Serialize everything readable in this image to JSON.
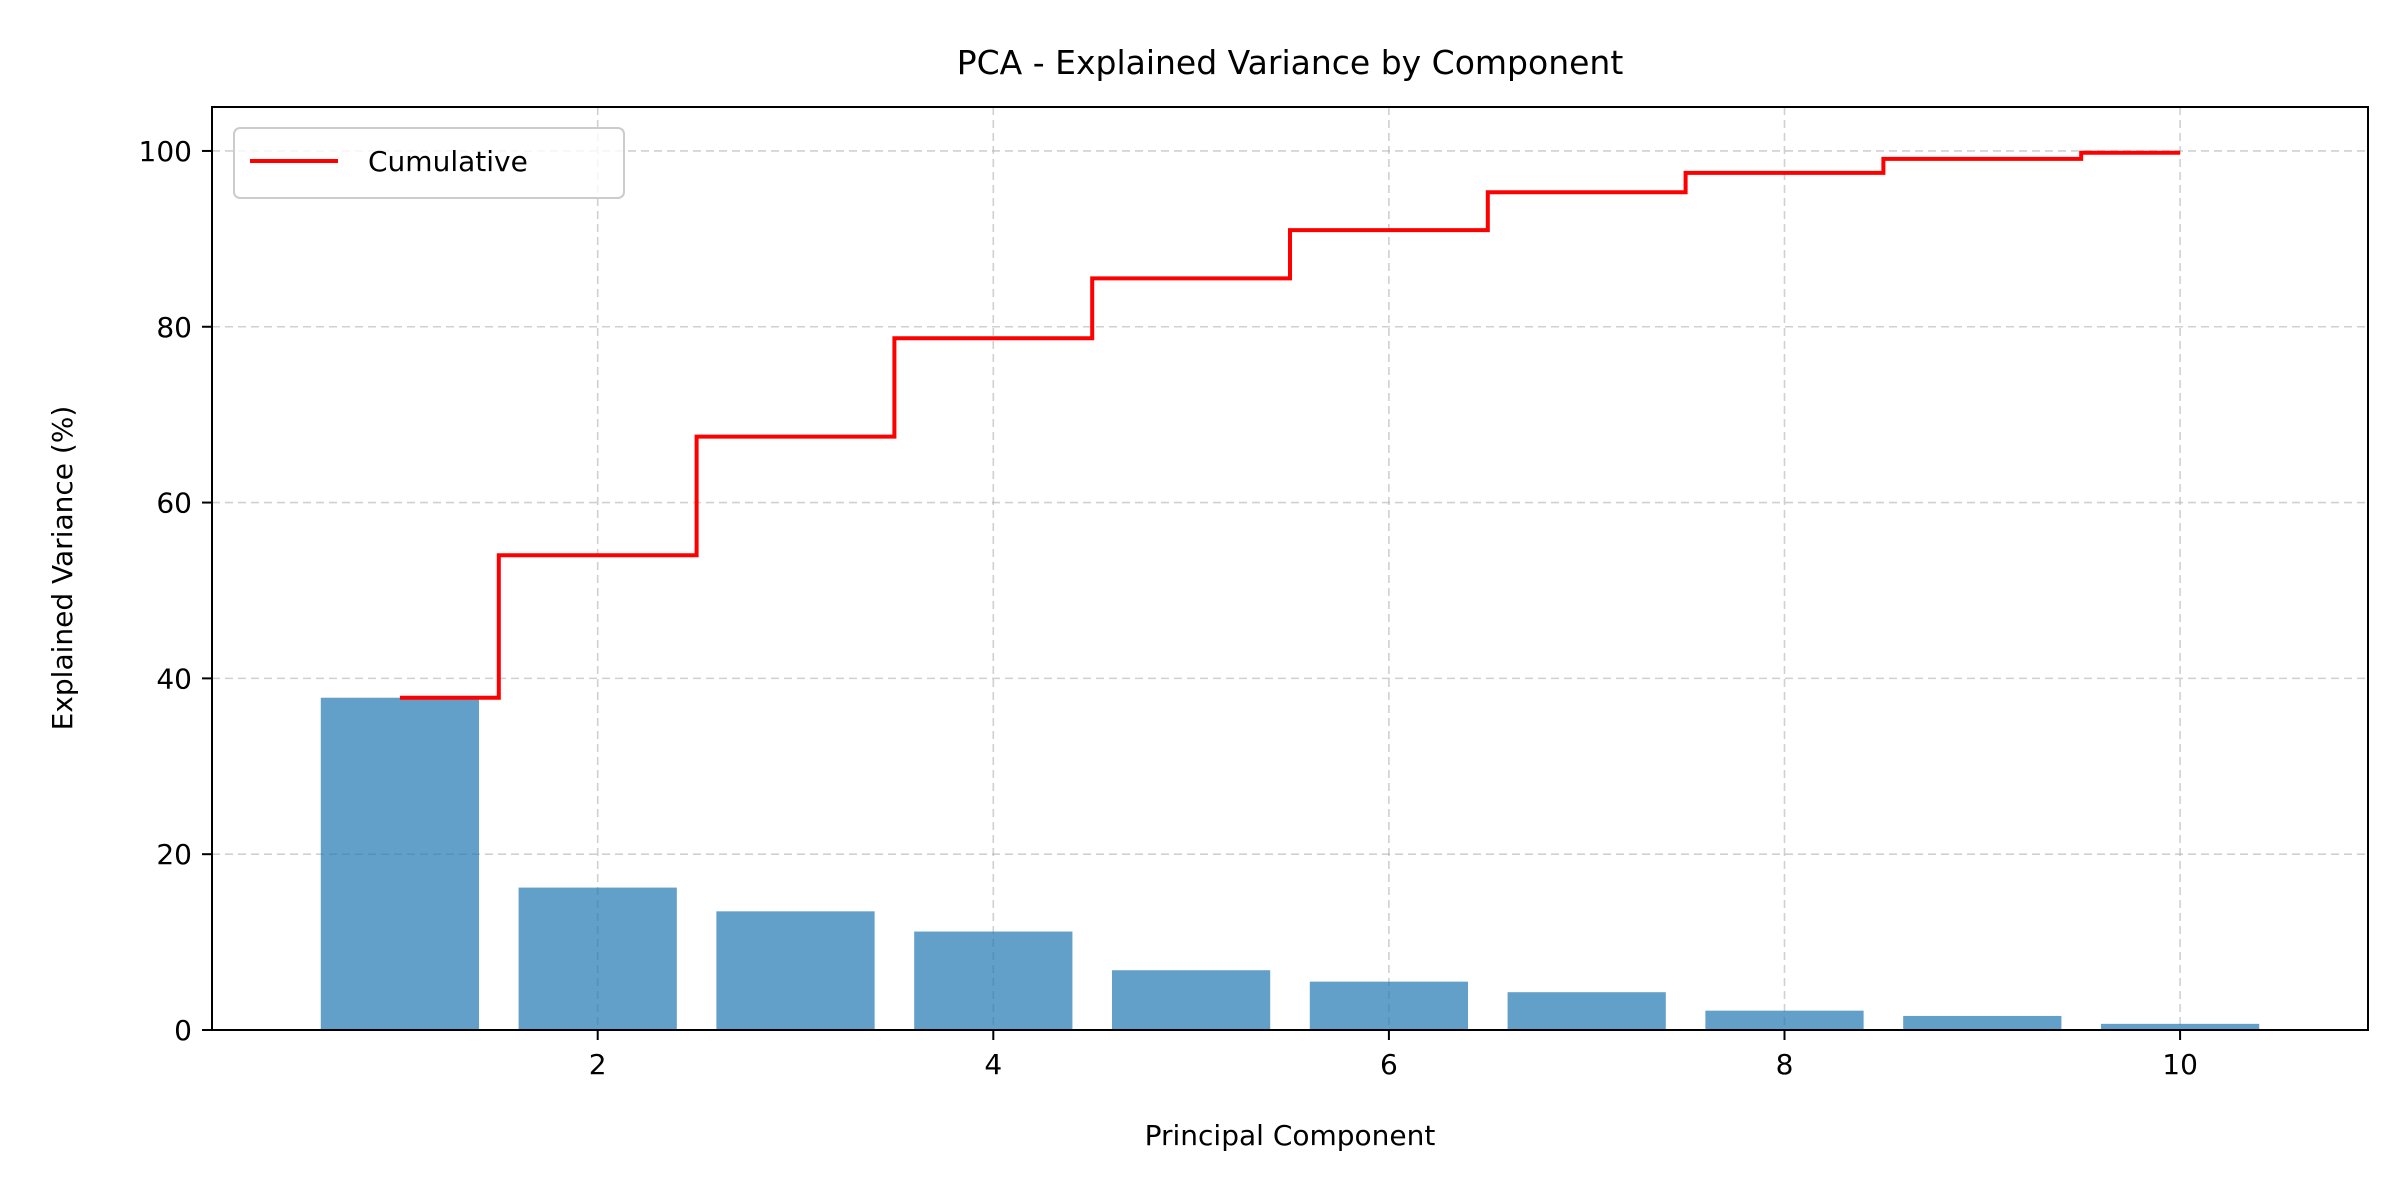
{
  "chart_data": {
    "type": "bar",
    "title": "PCA - Explained Variance by Component",
    "xlabel": "Principal Component",
    "ylabel": "Explained Variance (%)",
    "categories": [
      1,
      2,
      3,
      4,
      5,
      6,
      7,
      8,
      9,
      10
    ],
    "xlim": [
      0.05,
      10.95
    ],
    "ylim": [
      0,
      105
    ],
    "xticks": [
      2,
      4,
      6,
      8,
      10
    ],
    "yticks": [
      0,
      20,
      40,
      60,
      80,
      100
    ],
    "grid": true,
    "legend_position": "top-left",
    "series": [
      {
        "type": "bar",
        "values": [
          37.8,
          16.2,
          13.5,
          11.2,
          6.8,
          5.5,
          4.3,
          2.2,
          1.6,
          0.7
        ],
        "color": "#1f77b4",
        "alpha": 0.7
      },
      {
        "name": "Cumulative",
        "type": "step",
        "step_where": "mid",
        "values": [
          37.8,
          54.0,
          67.5,
          78.7,
          85.5,
          91.0,
          95.3,
          97.5,
          99.1,
          99.8
        ],
        "color": "#ff0000"
      }
    ]
  }
}
